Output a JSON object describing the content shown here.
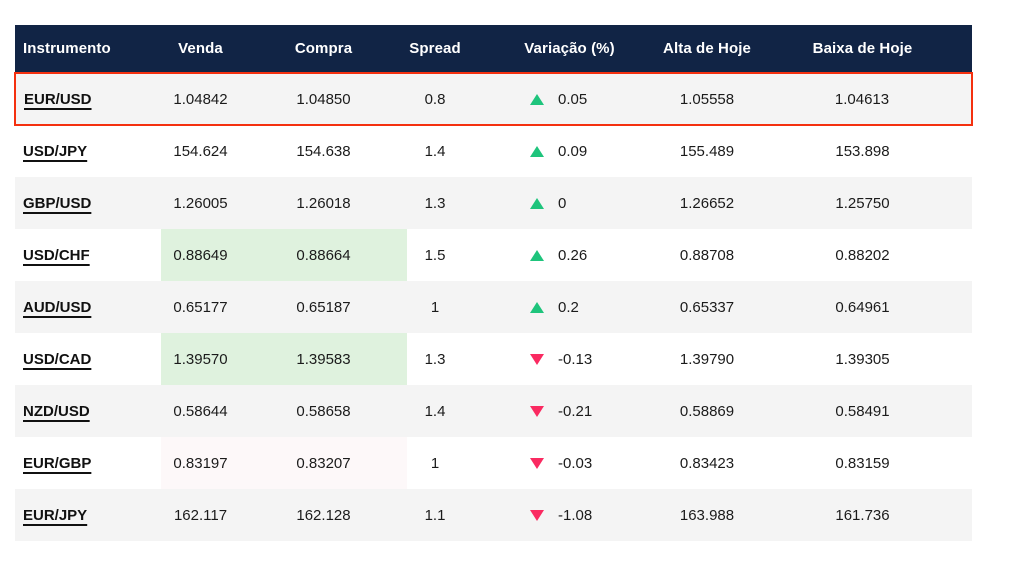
{
  "colors": {
    "header_bg": "#112445",
    "stripe_bg": "#F4F4F4",
    "row_bg": "#FFFFFF",
    "text": "#1B1B1B",
    "header_text": "#FFFFFF",
    "up": "#1EC47C",
    "down": "#FA2A61",
    "green_flash": "#DFF2DE",
    "pink_flash": "#FDF8F9",
    "selected_border": "#F4300F"
  },
  "table": {
    "columns": [
      "Instrumento",
      "Venda",
      "Compra",
      "Spread",
      "Variação (%)",
      "Alta de Hoje",
      "Baixa de Hoje"
    ],
    "rows": [
      {
        "instrument": "EUR/USD",
        "venda": "1.04842",
        "compra": "1.04850",
        "spread": "0.8",
        "direction": "up",
        "variation": "0.05",
        "alta": "1.05558",
        "baixa": "1.04613",
        "selected": true,
        "price_highlight": "none"
      },
      {
        "instrument": "USD/JPY",
        "venda": "154.624",
        "compra": "154.638",
        "spread": "1.4",
        "direction": "up",
        "variation": "0.09",
        "alta": "155.489",
        "baixa": "153.898",
        "selected": false,
        "price_highlight": "none"
      },
      {
        "instrument": "GBP/USD",
        "venda": "1.26005",
        "compra": "1.26018",
        "spread": "1.3",
        "direction": "up",
        "variation": "0",
        "alta": "1.26652",
        "baixa": "1.25750",
        "selected": false,
        "price_highlight": "none"
      },
      {
        "instrument": "USD/CHF",
        "venda": "0.88649",
        "compra": "0.88664",
        "spread": "1.5",
        "direction": "up",
        "variation": "0.26",
        "alta": "0.88708",
        "baixa": "0.88202",
        "selected": false,
        "price_highlight": "green"
      },
      {
        "instrument": "AUD/USD",
        "venda": "0.65177",
        "compra": "0.65187",
        "spread": "1",
        "direction": "up",
        "variation": "0.2",
        "alta": "0.65337",
        "baixa": "0.64961",
        "selected": false,
        "price_highlight": "none"
      },
      {
        "instrument": "USD/CAD",
        "venda": "1.39570",
        "compra": "1.39583",
        "spread": "1.3",
        "direction": "down",
        "variation": "-0.13",
        "alta": "1.39790",
        "baixa": "1.39305",
        "selected": false,
        "price_highlight": "green"
      },
      {
        "instrument": "NZD/USD",
        "venda": "0.58644",
        "compra": "0.58658",
        "spread": "1.4",
        "direction": "down",
        "variation": "-0.21",
        "alta": "0.58869",
        "baixa": "0.58491",
        "selected": false,
        "price_highlight": "none"
      },
      {
        "instrument": "EUR/GBP",
        "venda": "0.83197",
        "compra": "0.83207",
        "spread": "1",
        "direction": "down",
        "variation": "-0.03",
        "alta": "0.83423",
        "baixa": "0.83159",
        "selected": false,
        "price_highlight": "pink"
      },
      {
        "instrument": "EUR/JPY",
        "venda": "162.117",
        "compra": "162.128",
        "spread": "1.1",
        "direction": "down",
        "variation": "-1.08",
        "alta": "163.988",
        "baixa": "161.736",
        "selected": false,
        "price_highlight": "none"
      }
    ]
  }
}
